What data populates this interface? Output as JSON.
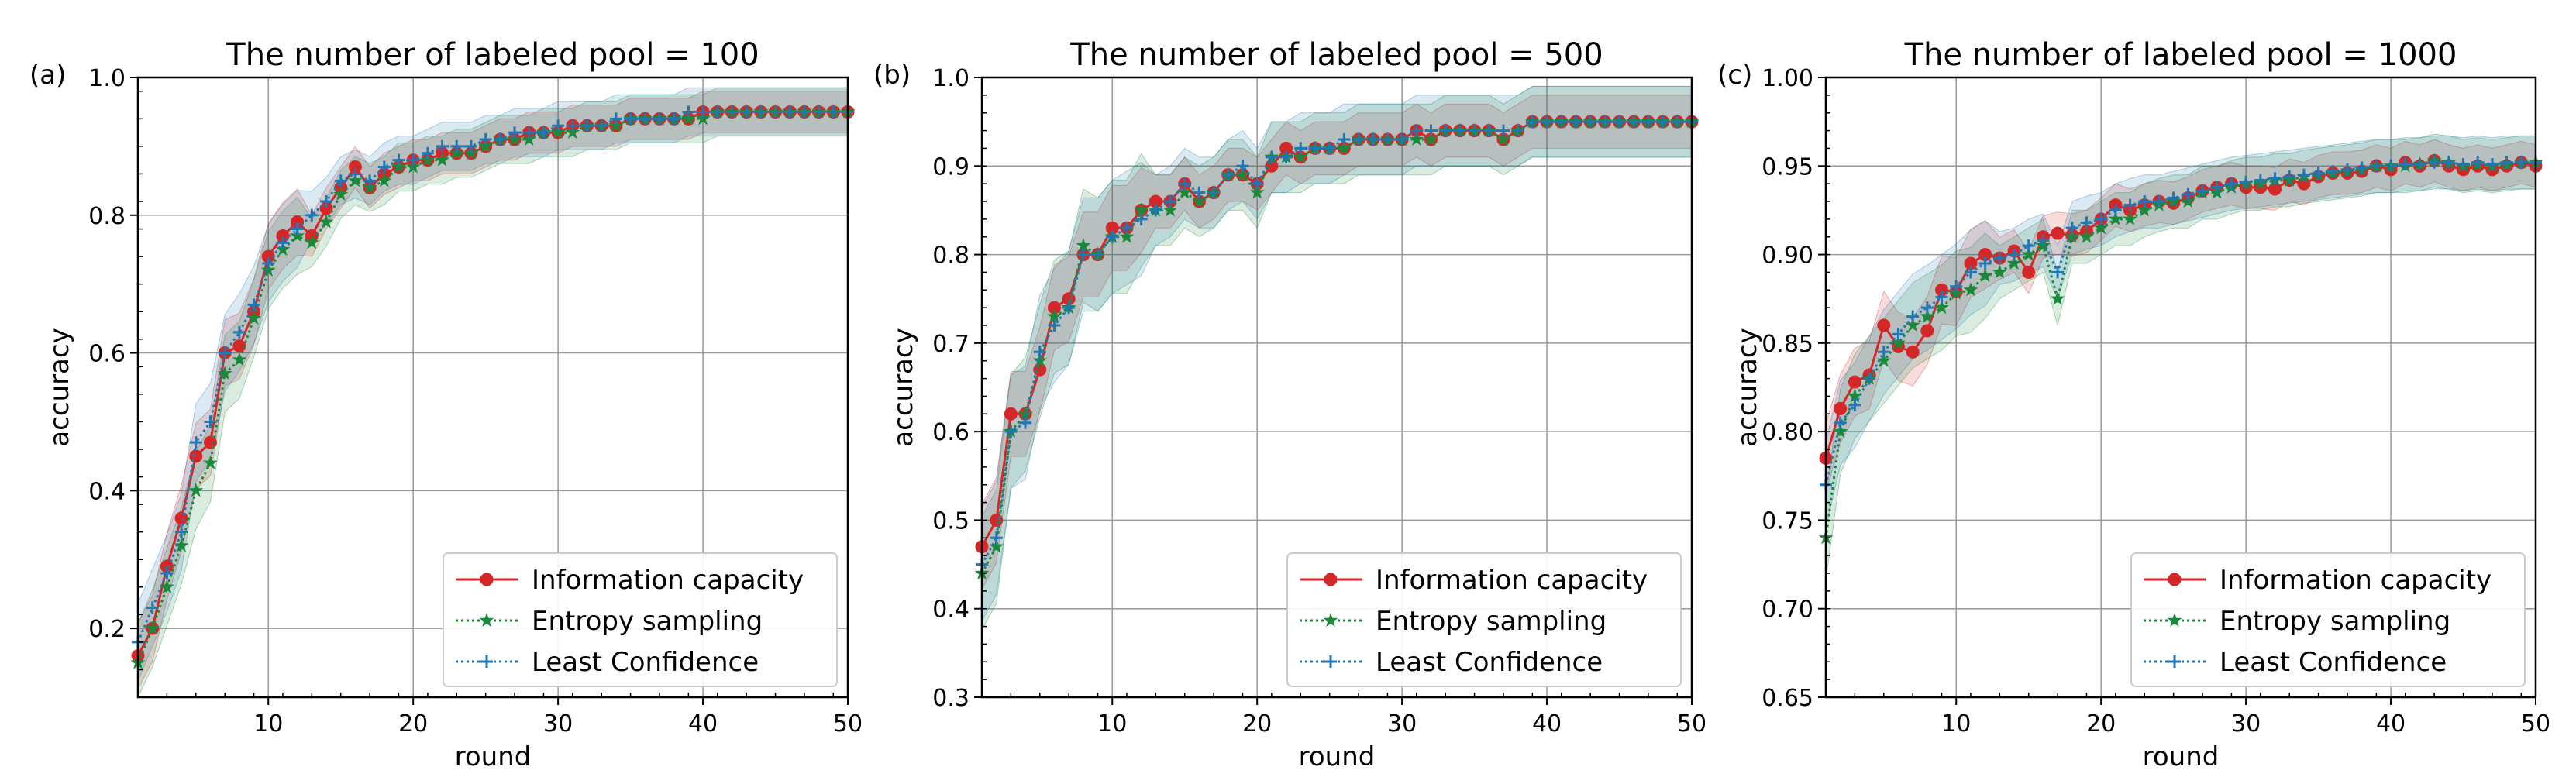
{
  "chart_data": [
    {
      "type": "line",
      "panel_label": "(a)",
      "title": "The number of labeled pool = 100",
      "xlabel": "round",
      "ylabel": "accuracy",
      "xlim": [
        1,
        50
      ],
      "ylim": [
        0.1,
        1.0
      ],
      "xticks": [
        10,
        20,
        30,
        40,
        50
      ],
      "xtick_labels": [
        "10",
        "20",
        "30",
        "40",
        "50"
      ],
      "yticks": [
        0.2,
        0.4,
        0.6,
        0.8,
        1.0
      ],
      "ytick_labels": [
        "0.2",
        "0.4",
        "0.6",
        "0.8",
        "1.0"
      ],
      "grid": true,
      "legend_position": "lower-right",
      "x": [
        1,
        2,
        3,
        4,
        5,
        6,
        7,
        8,
        9,
        10,
        11,
        12,
        13,
        14,
        15,
        16,
        17,
        18,
        19,
        20,
        21,
        22,
        23,
        24,
        25,
        26,
        27,
        28,
        29,
        30,
        31,
        32,
        33,
        34,
        35,
        36,
        37,
        38,
        39,
        40,
        41,
        42,
        43,
        44,
        45,
        46,
        47,
        48,
        49,
        50
      ],
      "series": [
        {
          "name": "Information capacity",
          "color": "#d62728",
          "marker": "circle",
          "dash": "solid",
          "band": 0.03,
          "values": [
            0.16,
            0.2,
            0.29,
            0.36,
            0.45,
            0.47,
            0.6,
            0.61,
            0.66,
            0.74,
            0.77,
            0.79,
            0.77,
            0.81,
            0.84,
            0.87,
            0.84,
            0.86,
            0.87,
            0.88,
            0.88,
            0.89,
            0.89,
            0.89,
            0.9,
            0.91,
            0.91,
            0.92,
            0.92,
            0.92,
            0.93,
            0.93,
            0.93,
            0.93,
            0.94,
            0.94,
            0.94,
            0.94,
            0.94,
            0.95,
            0.95,
            0.95,
            0.95,
            0.95,
            0.95,
            0.95,
            0.95,
            0.95,
            0.95,
            0.95
          ]
        },
        {
          "name": "Entropy sampling",
          "color": "#1a8a3a",
          "marker": "star",
          "dash": "dotted",
          "band": 0.035,
          "values": [
            0.15,
            0.2,
            0.26,
            0.32,
            0.4,
            0.44,
            0.57,
            0.59,
            0.65,
            0.72,
            0.75,
            0.77,
            0.76,
            0.79,
            0.83,
            0.85,
            0.84,
            0.85,
            0.87,
            0.87,
            0.88,
            0.88,
            0.89,
            0.89,
            0.9,
            0.91,
            0.91,
            0.91,
            0.92,
            0.92,
            0.92,
            0.93,
            0.93,
            0.93,
            0.94,
            0.94,
            0.94,
            0.94,
            0.94,
            0.94,
            0.95,
            0.95,
            0.95,
            0.95,
            0.95,
            0.95,
            0.95,
            0.95,
            0.95,
            0.95
          ]
        },
        {
          "name": "Least Confidence",
          "color": "#1f77b4",
          "marker": "plus",
          "dash": "dotted",
          "band": 0.035,
          "values": [
            0.18,
            0.23,
            0.28,
            0.34,
            0.47,
            0.5,
            0.6,
            0.63,
            0.67,
            0.73,
            0.76,
            0.78,
            0.8,
            0.82,
            0.85,
            0.86,
            0.85,
            0.87,
            0.88,
            0.88,
            0.89,
            0.9,
            0.9,
            0.9,
            0.91,
            0.91,
            0.92,
            0.92,
            0.92,
            0.93,
            0.93,
            0.93,
            0.93,
            0.94,
            0.94,
            0.94,
            0.94,
            0.94,
            0.95,
            0.95,
            0.95,
            0.95,
            0.95,
            0.95,
            0.95,
            0.95,
            0.95,
            0.95,
            0.95,
            0.95
          ]
        }
      ]
    },
    {
      "type": "line",
      "panel_label": "(b)",
      "title": "The number of labeled pool = 500",
      "xlabel": "round",
      "ylabel": "accuracy",
      "xlim": [
        1,
        50
      ],
      "ylim": [
        0.3,
        1.0
      ],
      "xticks": [
        10,
        20,
        30,
        40,
        50
      ],
      "xtick_labels": [
        "10",
        "20",
        "30",
        "40",
        "50"
      ],
      "yticks": [
        0.3,
        0.4,
        0.5,
        0.6,
        0.7,
        0.8,
        0.9,
        1.0
      ],
      "ytick_labels": [
        "0.3",
        "0.4",
        "0.5",
        "0.6",
        "0.7",
        "0.8",
        "0.9",
        "1.0"
      ],
      "grid": true,
      "legend_position": "lower-right",
      "x": [
        1,
        2,
        3,
        4,
        5,
        6,
        7,
        8,
        9,
        10,
        11,
        12,
        13,
        14,
        15,
        16,
        17,
        18,
        19,
        20,
        21,
        22,
        23,
        24,
        25,
        26,
        27,
        28,
        29,
        30,
        31,
        32,
        33,
        34,
        35,
        36,
        37,
        38,
        39,
        40,
        41,
        42,
        43,
        44,
        45,
        46,
        47,
        48,
        49,
        50
      ],
      "series": [
        {
          "name": "Information capacity",
          "color": "#d62728",
          "marker": "circle",
          "dash": "solid",
          "band": 0.03,
          "values": [
            0.47,
            0.5,
            0.62,
            0.62,
            0.67,
            0.74,
            0.75,
            0.8,
            0.8,
            0.83,
            0.83,
            0.85,
            0.86,
            0.86,
            0.88,
            0.86,
            0.87,
            0.89,
            0.89,
            0.88,
            0.9,
            0.92,
            0.91,
            0.92,
            0.92,
            0.92,
            0.93,
            0.93,
            0.93,
            0.93,
            0.94,
            0.93,
            0.94,
            0.94,
            0.94,
            0.94,
            0.93,
            0.94,
            0.95,
            0.95,
            0.95,
            0.95,
            0.95,
            0.95,
            0.95,
            0.95,
            0.95,
            0.95,
            0.95,
            0.95
          ]
        },
        {
          "name": "Entropy sampling",
          "color": "#1a8a3a",
          "marker": "star",
          "dash": "dotted",
          "band": 0.04,
          "values": [
            0.44,
            0.47,
            0.6,
            0.62,
            0.68,
            0.73,
            0.74,
            0.81,
            0.8,
            0.82,
            0.82,
            0.85,
            0.85,
            0.85,
            0.87,
            0.86,
            0.87,
            0.89,
            0.89,
            0.87,
            0.91,
            0.91,
            0.91,
            0.92,
            0.92,
            0.92,
            0.93,
            0.93,
            0.93,
            0.93,
            0.93,
            0.93,
            0.94,
            0.94,
            0.94,
            0.94,
            0.93,
            0.94,
            0.95,
            0.95,
            0.95,
            0.95,
            0.95,
            0.95,
            0.95,
            0.95,
            0.95,
            0.95,
            0.95,
            0.95
          ]
        },
        {
          "name": "Least Confidence",
          "color": "#1f77b4",
          "marker": "plus",
          "dash": "dotted",
          "band": 0.04,
          "values": [
            0.45,
            0.48,
            0.6,
            0.61,
            0.69,
            0.72,
            0.74,
            0.8,
            0.8,
            0.82,
            0.83,
            0.84,
            0.85,
            0.86,
            0.88,
            0.87,
            0.87,
            0.89,
            0.9,
            0.88,
            0.91,
            0.91,
            0.92,
            0.92,
            0.92,
            0.93,
            0.93,
            0.93,
            0.93,
            0.93,
            0.94,
            0.94,
            0.94,
            0.94,
            0.94,
            0.94,
            0.94,
            0.94,
            0.95,
            0.95,
            0.95,
            0.95,
            0.95,
            0.95,
            0.95,
            0.95,
            0.95,
            0.95,
            0.95,
            0.95
          ]
        }
      ]
    },
    {
      "type": "line",
      "panel_label": "(c)",
      "title": "The number of labeled pool = 1000",
      "xlabel": "round",
      "ylabel": "accuracy",
      "xlim": [
        1,
        50
      ],
      "ylim": [
        0.65,
        1.0
      ],
      "xticks": [
        10,
        20,
        30,
        40,
        50
      ],
      "xtick_labels": [
        "10",
        "20",
        "30",
        "40",
        "50"
      ],
      "yticks": [
        0.65,
        0.7,
        0.75,
        0.8,
        0.85,
        0.9,
        0.95,
        1.0
      ],
      "ytick_labels": [
        "0.65",
        "0.70",
        "0.75",
        "0.80",
        "0.85",
        "0.90",
        "0.95",
        "1.00"
      ],
      "grid": true,
      "legend_position": "lower-right",
      "x": [
        1,
        2,
        3,
        4,
        5,
        6,
        7,
        8,
        9,
        10,
        11,
        12,
        13,
        14,
        15,
        16,
        17,
        18,
        19,
        20,
        21,
        22,
        23,
        24,
        25,
        26,
        27,
        28,
        29,
        30,
        31,
        32,
        33,
        34,
        35,
        36,
        37,
        38,
        39,
        40,
        41,
        42,
        43,
        44,
        45,
        46,
        47,
        48,
        49,
        50
      ],
      "series": [
        {
          "name": "Information capacity",
          "color": "#d62728",
          "marker": "circle",
          "dash": "solid",
          "band": 0.012,
          "values": [
            0.785,
            0.813,
            0.828,
            0.832,
            0.86,
            0.848,
            0.845,
            0.857,
            0.88,
            0.879,
            0.895,
            0.9,
            0.898,
            0.902,
            0.89,
            0.91,
            0.912,
            0.911,
            0.913,
            0.92,
            0.928,
            0.925,
            0.928,
            0.93,
            0.929,
            0.932,
            0.936,
            0.938,
            0.94,
            0.938,
            0.938,
            0.937,
            0.942,
            0.94,
            0.944,
            0.946,
            0.946,
            0.947,
            0.95,
            0.948,
            0.952,
            0.95,
            0.953,
            0.95,
            0.948,
            0.95,
            0.948,
            0.95,
            0.952,
            0.95
          ]
        },
        {
          "name": "Entropy sampling",
          "color": "#1a8a3a",
          "marker": "star",
          "dash": "dotted",
          "band": 0.015,
          "values": [
            0.74,
            0.8,
            0.82,
            0.83,
            0.84,
            0.85,
            0.86,
            0.865,
            0.87,
            0.878,
            0.88,
            0.888,
            0.89,
            0.895,
            0.9,
            0.905,
            0.875,
            0.91,
            0.91,
            0.915,
            0.92,
            0.92,
            0.925,
            0.928,
            0.93,
            0.93,
            0.935,
            0.935,
            0.938,
            0.94,
            0.94,
            0.942,
            0.942,
            0.944,
            0.945,
            0.946,
            0.947,
            0.948,
            0.95,
            0.95,
            0.95,
            0.951,
            0.953,
            0.952,
            0.95,
            0.951,
            0.95,
            0.951,
            0.952,
            0.952
          ]
        },
        {
          "name": "Least Confidence",
          "color": "#1f77b4",
          "marker": "plus",
          "dash": "dotted",
          "band": 0.015,
          "values": [
            0.77,
            0.805,
            0.815,
            0.83,
            0.845,
            0.855,
            0.865,
            0.87,
            0.876,
            0.882,
            0.89,
            0.895,
            0.898,
            0.9,
            0.905,
            0.908,
            0.89,
            0.915,
            0.918,
            0.92,
            0.925,
            0.928,
            0.93,
            0.93,
            0.932,
            0.934,
            0.936,
            0.938,
            0.94,
            0.941,
            0.942,
            0.943,
            0.944,
            0.945,
            0.946,
            0.947,
            0.948,
            0.949,
            0.95,
            0.95,
            0.951,
            0.951,
            0.952,
            0.952,
            0.951,
            0.952,
            0.951,
            0.952,
            0.952,
            0.952
          ]
        }
      ]
    }
  ]
}
